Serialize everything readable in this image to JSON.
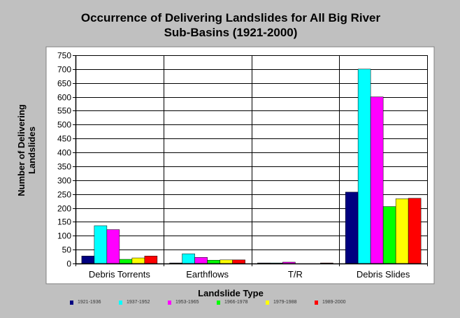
{
  "chart_data": {
    "type": "bar",
    "title_line1": "Occurrence of Delivering Landslides for All Big River",
    "title_line2": "Sub-Basins (1921-2000)",
    "xlabel": "Landslide Type",
    "ylabel_line1": "Number of Delivering",
    "ylabel_line2": "Landslides",
    "categories": [
      "Debris Torrents",
      "Earthflows",
      "T/R",
      "Debris Slides"
    ],
    "ylim": [
      0,
      750
    ],
    "yticks": [
      0,
      50,
      100,
      150,
      200,
      250,
      300,
      350,
      400,
      450,
      500,
      550,
      600,
      650,
      700,
      750
    ],
    "grid": true,
    "legend_position": "bottom",
    "series": [
      {
        "name": "1921-1936",
        "color": "#000080",
        "values": [
          27,
          2,
          2,
          257
        ]
      },
      {
        "name": "1937-1952",
        "color": "#00ffff",
        "values": [
          136,
          35,
          2,
          700
        ]
      },
      {
        "name": "1953-1965",
        "color": "#ff00ff",
        "values": [
          122,
          22,
          5,
          600
        ]
      },
      {
        "name": "1966-1978",
        "color": "#00ff00",
        "values": [
          15,
          12,
          0,
          205
        ]
      },
      {
        "name": "1979-1988",
        "color": "#ffff00",
        "values": [
          20,
          13,
          0,
          233
        ]
      },
      {
        "name": "1989-2000",
        "color": "#ff0000",
        "values": [
          27,
          13,
          2,
          235
        ]
      }
    ]
  }
}
